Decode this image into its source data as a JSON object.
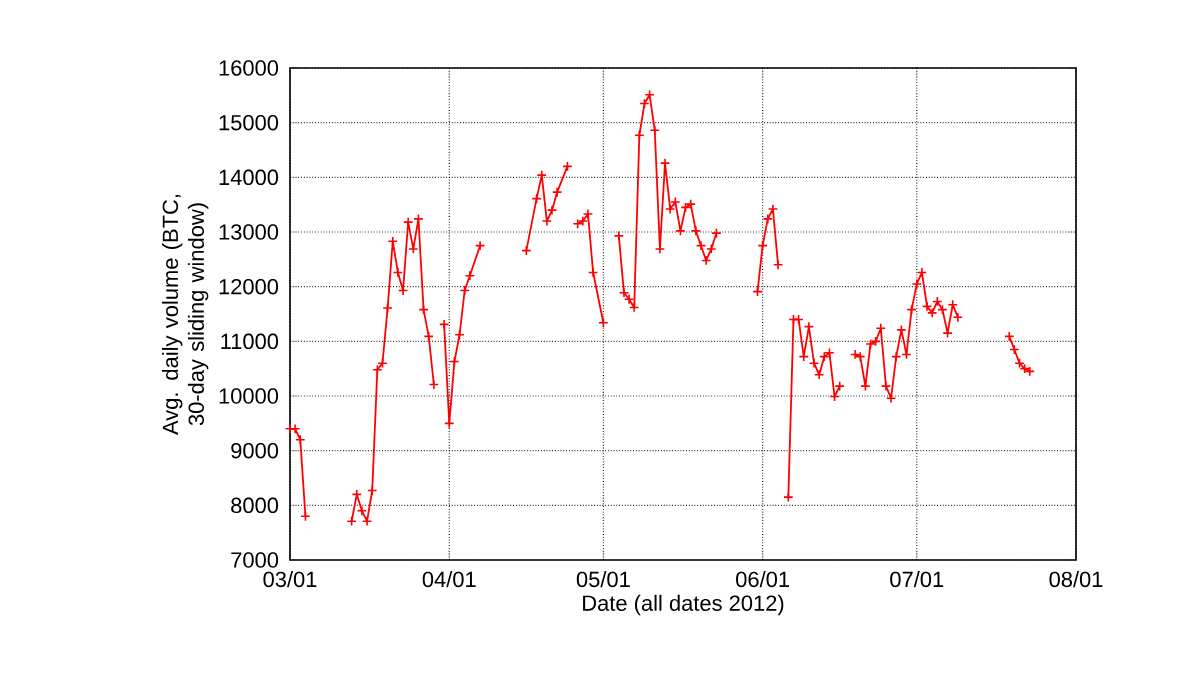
{
  "chart_data": {
    "type": "line",
    "xlabel": "Date (all dates 2012)",
    "ylabel": "Avg. daily volume (BTC, 30-day sliding window)",
    "x": [
      "2012-03-01",
      "2012-03-02",
      "2012-03-03",
      "2012-03-04",
      "2012-03-08",
      "2012-03-13",
      "2012-03-14",
      "2012-03-15",
      "2012-03-16",
      "2012-03-17",
      "2012-03-18",
      "2012-03-19",
      "2012-03-20",
      "2012-03-21",
      "2012-03-22",
      "2012-03-23",
      "2012-03-24",
      "2012-03-25",
      "2012-03-26",
      "2012-03-27",
      "2012-03-28",
      "2012-03-29",
      "2012-03-30",
      "2012-03-31",
      "2012-04-01",
      "2012-04-02",
      "2012-04-03",
      "2012-04-04",
      "2012-04-05",
      "2012-04-07",
      "2012-04-11",
      "2012-04-16",
      "2012-04-18",
      "2012-04-19",
      "2012-04-20",
      "2012-04-21",
      "2012-04-22",
      "2012-04-24",
      "2012-04-25",
      "2012-04-26",
      "2012-04-27",
      "2012-04-28",
      "2012-04-29",
      "2012-05-01",
      "2012-05-02",
      "2012-05-04",
      "2012-05-05",
      "2012-05-06",
      "2012-05-07",
      "2012-05-08",
      "2012-05-09",
      "2012-05-10",
      "2012-05-11",
      "2012-05-12",
      "2012-05-13",
      "2012-05-14",
      "2012-05-15",
      "2012-05-16",
      "2012-05-17",
      "2012-05-18",
      "2012-05-19",
      "2012-05-20",
      "2012-05-21",
      "2012-05-22",
      "2012-05-23",
      "2012-05-27",
      "2012-05-31",
      "2012-06-01",
      "2012-06-02",
      "2012-06-03",
      "2012-06-04",
      "2012-06-05",
      "2012-06-06",
      "2012-06-07",
      "2012-06-08",
      "2012-06-09",
      "2012-06-10",
      "2012-06-11",
      "2012-06-12",
      "2012-06-13",
      "2012-06-14",
      "2012-06-15",
      "2012-06-16",
      "2012-06-17",
      "2012-06-19",
      "2012-06-20",
      "2012-06-21",
      "2012-06-22",
      "2012-06-23",
      "2012-06-24",
      "2012-06-25",
      "2012-06-26",
      "2012-06-27",
      "2012-06-28",
      "2012-06-29",
      "2012-06-30",
      "2012-07-01",
      "2012-07-02",
      "2012-07-03",
      "2012-07-04",
      "2012-07-05",
      "2012-07-06",
      "2012-07-07",
      "2012-07-08",
      "2012-07-09",
      "2012-07-14",
      "2012-07-19",
      "2012-07-20",
      "2012-07-21",
      "2012-07-22",
      "2012-07-23"
    ],
    "series": [
      {
        "color": "#ff0000",
        "values": [
          9400,
          9400,
          9200,
          7800,
          null,
          7710,
          8200,
          7900,
          7710,
          8270,
          10480,
          10600,
          11610,
          12830,
          12260,
          11930,
          13180,
          12690,
          13240,
          11580,
          11090,
          10210,
          null,
          11310,
          9500,
          10630,
          11120,
          11930,
          12200,
          12750,
          null,
          12660,
          13610,
          14040,
          13200,
          13400,
          13730,
          14200,
          null,
          13150,
          13200,
          13330,
          12260,
          11340,
          null,
          12930,
          11890,
          11770,
          11620,
          14770,
          15350,
          15510,
          14860,
          12690,
          14260,
          13420,
          13550,
          13020,
          13450,
          13510,
          13020,
          12750,
          12480,
          12690,
          12980,
          null,
          11910,
          12750,
          13240,
          13420,
          12400,
          null,
          8150,
          11400,
          11400,
          10720,
          11270,
          10600,
          10390,
          10720,
          10790,
          9990,
          10180,
          null,
          10760,
          10720,
          10180,
          10950,
          11000,
          11240,
          10180,
          9960,
          10720,
          11210,
          10760,
          11580,
          12050,
          12260,
          11640,
          11520,
          11730,
          11580,
          11150,
          11670,
          11440,
          null,
          11090,
          10850,
          10600,
          10500,
          10450
        ]
      }
    ],
    "xlim": [
      "2012-03-01",
      "2012-08-01"
    ],
    "xticks": [
      {
        "value": "2012-03-01",
        "label": "03/01"
      },
      {
        "value": "2012-04-01",
        "label": "04/01"
      },
      {
        "value": "2012-05-01",
        "label": "05/01"
      },
      {
        "value": "2012-06-01",
        "label": "06/01"
      },
      {
        "value": "2012-07-01",
        "label": "07/01"
      },
      {
        "value": "2012-08-01",
        "label": "08/01"
      }
    ],
    "ylim": [
      7000,
      16000
    ],
    "yticks": [
      7000,
      8000,
      9000,
      10000,
      11000,
      12000,
      13000,
      14000,
      15000,
      16000
    ],
    "grid": true,
    "marker": "cross",
    "line_style": "solid"
  }
}
